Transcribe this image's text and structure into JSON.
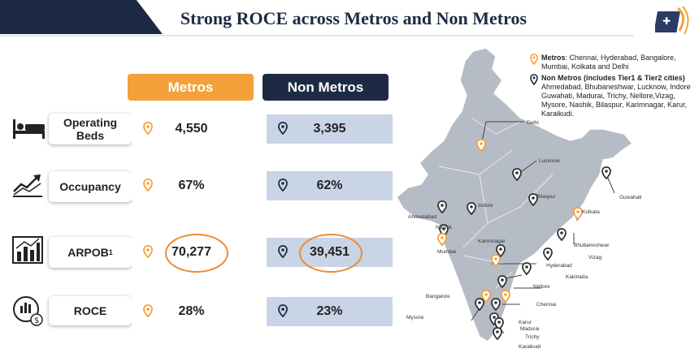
{
  "title": "Strong ROCE across Metros and Non Metros",
  "columns": {
    "metros": "Metros",
    "non_metros": "Non Metros"
  },
  "rows": [
    {
      "metric": "Operating Beds",
      "metros": "4,550",
      "non_metros": "3,395"
    },
    {
      "metric": "Occupancy",
      "metros": "67%",
      "non_metros": "62%"
    },
    {
      "metric": "ARPOB",
      "sup": "1",
      "metros": "70,277",
      "non_metros": "39,451"
    },
    {
      "metric": "ROCE",
      "metros": "28%",
      "non_metros": "23%"
    }
  ],
  "legend": {
    "metros_label": "Metros",
    "metros_cities": ": Chennai, Hyderabad, Bangalore, Mumbai, Kolkata and Delhi",
    "non_metros_label": "Non Metros (includes Tier1 & Tier2 cities)",
    "non_metros_cities": "Ahmedabad, Bhubaneshwar, Lucknow, Indore Guwahati, Madurai, Trichy, Nellore,Vizag, Mysore, Nashik, Bilaspur, Karimnagar, Karur, Karaikudi."
  },
  "map_cities": {
    "delhi": "Delhi",
    "lucknow": "Lucknow",
    "guwahati": "Guwahati",
    "bilaspur": "Bilaspur",
    "kolkata": "Kolkata",
    "indore": "Indore",
    "ahmedabad": "Ahmedabad",
    "nashik": "Nashik",
    "bhubaneshwar": "Bhubaneshwar",
    "karimnagar": "Karimnagar",
    "mumbai": "Mumbai",
    "vizag": "Vizag",
    "hyderabad": "Hyderabad",
    "kakinada": "Kakinada",
    "nellore": "Nellore",
    "bangalore": "Bangalore",
    "chennai": "Chennai",
    "mysore": "Mysore",
    "karur": "Karur",
    "madurai": "Madurai",
    "trichy": "Trichy",
    "karaikudi": "Karaikudi"
  },
  "colors": {
    "metro": "#f4a13a",
    "non_metro": "#1d2a44",
    "highlight": "#f08a2c",
    "cell_non": "#c9d4e6"
  }
}
